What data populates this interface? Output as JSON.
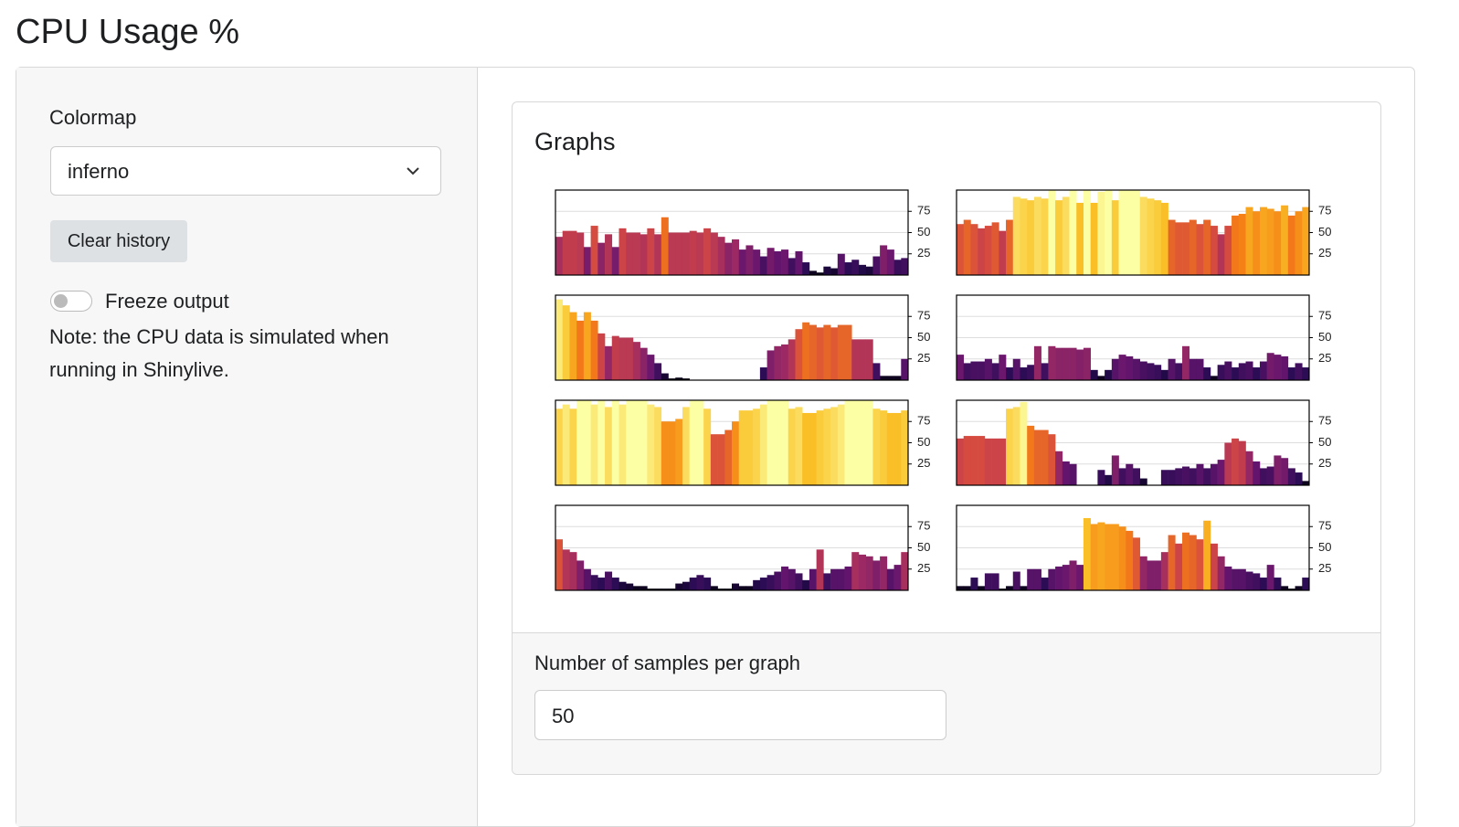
{
  "header": {
    "title": "CPU Usage %"
  },
  "sidebar": {
    "colormap_label": "Colormap",
    "colormap_value": "inferno",
    "clear_button": "Clear history",
    "freeze_label": "Freeze output",
    "note": "Note: the CPU data is simulated when running in Shinylive."
  },
  "card": {
    "title": "Graphs",
    "samples_label": "Number of samples per graph",
    "samples_value": "50"
  },
  "chart_data": [
    {
      "type": "bar",
      "ylim": [
        0,
        100
      ],
      "yticks": [
        25,
        50,
        75
      ],
      "grid": true,
      "values": [
        45,
        52,
        52,
        50,
        33,
        58,
        38,
        48,
        33,
        55,
        50,
        50,
        48,
        55,
        48,
        68,
        50,
        50,
        50,
        52,
        50,
        55,
        50,
        45,
        38,
        42,
        30,
        35,
        30,
        22,
        32,
        28,
        30,
        20,
        28,
        15,
        5,
        3,
        10,
        8,
        25,
        15,
        18,
        12,
        10,
        22,
        35,
        30,
        18,
        20
      ]
    },
    {
      "type": "bar",
      "ylim": [
        0,
        100
      ],
      "yticks": [
        25,
        50,
        75
      ],
      "grid": true,
      "values": [
        60,
        65,
        60,
        55,
        58,
        62,
        52,
        65,
        92,
        90,
        88,
        92,
        90,
        100,
        88,
        92,
        100,
        85,
        100,
        85,
        98,
        100,
        88,
        100,
        100,
        100,
        92,
        90,
        88,
        85,
        65,
        62,
        62,
        65,
        60,
        65,
        58,
        48,
        58,
        70,
        72,
        80,
        75,
        80,
        78,
        75,
        82,
        70,
        75,
        80
      ]
    },
    {
      "type": "bar",
      "ylim": [
        0,
        100
      ],
      "yticks": [
        25,
        50,
        75
      ],
      "grid": true,
      "values": [
        95,
        88,
        80,
        70,
        80,
        70,
        55,
        40,
        52,
        50,
        50,
        45,
        38,
        30,
        20,
        8,
        2,
        3,
        2,
        0,
        0,
        0,
        0,
        0,
        0,
        0,
        0,
        0,
        0,
        15,
        35,
        40,
        42,
        48,
        60,
        68,
        65,
        62,
        65,
        62,
        65,
        65,
        48,
        48,
        48,
        20,
        5,
        5,
        5,
        25
      ]
    },
    {
      "type": "bar",
      "ylim": [
        0,
        100
      ],
      "yticks": [
        25,
        50,
        75
      ],
      "grid": true,
      "values": [
        30,
        20,
        22,
        22,
        25,
        20,
        30,
        15,
        25,
        15,
        18,
        40,
        20,
        40,
        38,
        38,
        38,
        36,
        38,
        12,
        5,
        12,
        25,
        30,
        28,
        25,
        22,
        20,
        18,
        12,
        25,
        20,
        40,
        25,
        25,
        15,
        5,
        18,
        22,
        15,
        20,
        22,
        15,
        22,
        32,
        30,
        28,
        15,
        20,
        15
      ]
    },
    {
      "type": "bar",
      "ylim": [
        0,
        100
      ],
      "yticks": [
        25,
        50,
        75
      ],
      "grid": true,
      "values": [
        90,
        95,
        90,
        100,
        100,
        95,
        100,
        92,
        100,
        95,
        100,
        100,
        100,
        95,
        92,
        75,
        75,
        78,
        92,
        100,
        100,
        90,
        60,
        60,
        65,
        75,
        88,
        88,
        90,
        95,
        100,
        100,
        100,
        90,
        92,
        85,
        85,
        88,
        90,
        92,
        95,
        100,
        100,
        100,
        100,
        90,
        88,
        85,
        85,
        88
      ]
    },
    {
      "type": "bar",
      "ylim": [
        0,
        100
      ],
      "yticks": [
        25,
        50,
        75
      ],
      "grid": true,
      "values": [
        55,
        58,
        58,
        58,
        55,
        55,
        55,
        90,
        92,
        98,
        70,
        65,
        65,
        60,
        40,
        28,
        25,
        0,
        0,
        0,
        18,
        12,
        35,
        20,
        25,
        20,
        8,
        0,
        0,
        18,
        18,
        20,
        22,
        20,
        25,
        20,
        25,
        30,
        50,
        55,
        52,
        40,
        28,
        20,
        22,
        35,
        32,
        20,
        15,
        5
      ]
    },
    {
      "type": "bar",
      "ylim": [
        0,
        100
      ],
      "yticks": [
        25,
        50,
        75
      ],
      "grid": true,
      "values": [
        60,
        48,
        45,
        35,
        25,
        18,
        15,
        22,
        15,
        10,
        8,
        5,
        5,
        2,
        2,
        2,
        2,
        8,
        10,
        15,
        18,
        15,
        5,
        2,
        2,
        8,
        5,
        5,
        12,
        15,
        18,
        22,
        28,
        25,
        20,
        12,
        25,
        48,
        20,
        25,
        25,
        28,
        45,
        42,
        40,
        35,
        40,
        25,
        30,
        45
      ]
    },
    {
      "type": "bar",
      "ylim": [
        0,
        100
      ],
      "yticks": [
        25,
        50,
        75
      ],
      "grid": true,
      "values": [
        5,
        5,
        15,
        5,
        20,
        20,
        2,
        5,
        22,
        5,
        25,
        25,
        15,
        25,
        28,
        30,
        35,
        30,
        85,
        78,
        80,
        78,
        78,
        75,
        70,
        62,
        40,
        35,
        35,
        45,
        65,
        55,
        68,
        65,
        60,
        82,
        55,
        40,
        28,
        25,
        25,
        22,
        20,
        15,
        30,
        15,
        5,
        2,
        5,
        15
      ]
    }
  ]
}
